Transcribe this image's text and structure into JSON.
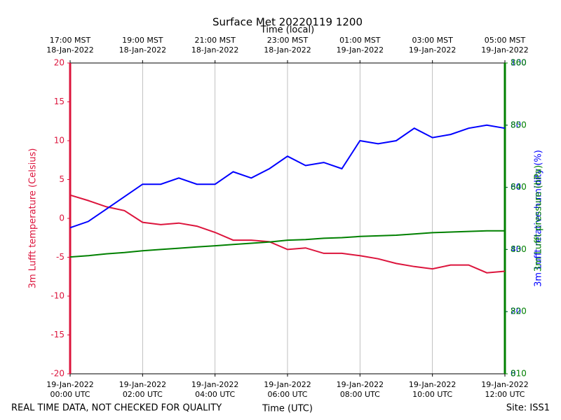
{
  "chart_data": {
    "type": "line",
    "title": "Surface Met 20220119 1200",
    "x_label": "Time (UTC)",
    "x2_label": "Time (local)",
    "y_label": "3m Lufft temperature (Celsius)",
    "y2_label": "3m Lufft relative humidity (%)",
    "y3_label": "3m Lufft pressure (hPa)",
    "footer_left": "REAL TIME DATA, NOT CHECKED FOR QUALITY",
    "footer_right": "Site: ISS1",
    "xlim": [
      0,
      12
    ],
    "xticks": [
      {
        "value": 0,
        "label": "19-Jan-2022\n00:00 UTC"
      },
      {
        "value": 2,
        "label": "19-Jan-2022\n02:00 UTC"
      },
      {
        "value": 4,
        "label": "19-Jan-2022\n04:00 UTC"
      },
      {
        "value": 6,
        "label": "19-Jan-2022\n06:00 UTC"
      },
      {
        "value": 8,
        "label": "19-Jan-2022\n08:00 UTC"
      },
      {
        "value": 10,
        "label": "19-Jan-2022\n10:00 UTC"
      },
      {
        "value": 12,
        "label": "19-Jan-2022\n12:00 UTC"
      }
    ],
    "x2ticks": [
      {
        "value": 0,
        "label": "17:00 MST\n18-Jan-2022"
      },
      {
        "value": 2,
        "label": "19:00 MST\n18-Jan-2022"
      },
      {
        "value": 4,
        "label": "21:00 MST\n18-Jan-2022"
      },
      {
        "value": 6,
        "label": "23:00 MST\n18-Jan-2022"
      },
      {
        "value": 8,
        "label": "01:00 MST\n19-Jan-2022"
      },
      {
        "value": 10,
        "label": "03:00 MST\n19-Jan-2022"
      },
      {
        "value": 12,
        "label": "05:00 MST\n19-Jan-2022"
      }
    ],
    "ylim": [
      -20,
      20
    ],
    "yticks": [
      -20,
      -15,
      -10,
      -5,
      0,
      5,
      10,
      15,
      20
    ],
    "y2lim": [
      0,
      100
    ],
    "y2ticks": [
      0,
      20,
      40,
      60,
      80,
      100
    ],
    "y3lim": [
      810,
      860
    ],
    "y3ticks": [
      810,
      820,
      830,
      840,
      850,
      860
    ],
    "grid": true,
    "x": [
      0,
      0.5,
      1,
      1.5,
      2,
      2.5,
      3,
      3.5,
      4,
      4.5,
      5,
      5.5,
      6,
      6.5,
      7,
      7.5,
      8,
      8.5,
      9,
      9.5,
      10,
      10.5,
      11,
      11.5,
      12
    ],
    "series": [
      {
        "name": "3m Lufft temperature (Celsius)",
        "color": "#dc143c",
        "axis": "y",
        "values": [
          3.0,
          2.3,
          1.5,
          1.0,
          -0.5,
          -0.8,
          -0.6,
          -1.0,
          -1.8,
          -2.8,
          -2.8,
          -3.0,
          -4.0,
          -3.8,
          -4.5,
          -4.5,
          -4.8,
          -5.2,
          -5.8,
          -6.2,
          -6.5,
          -6.0,
          -6.0,
          -7.0,
          -6.8
        ]
      },
      {
        "name": "3m Lufft relative humidity (%)",
        "color": "#0000ff",
        "axis": "y2",
        "values": [
          47,
          49,
          53,
          57,
          61,
          61,
          63,
          61,
          61,
          65,
          63,
          66,
          70,
          67,
          68,
          66,
          75,
          74,
          75,
          79,
          76,
          77,
          79,
          80,
          79
        ]
      },
      {
        "name": "3m Lufft pressure (hPa)",
        "color": "#008000",
        "axis": "y3",
        "values": [
          828.8,
          829.0,
          829.3,
          829.5,
          829.8,
          830.0,
          830.2,
          830.4,
          830.6,
          830.8,
          831.0,
          831.2,
          831.5,
          831.6,
          831.8,
          831.9,
          832.1,
          832.2,
          832.3,
          832.5,
          832.7,
          832.8,
          832.9,
          833.0,
          833.0
        ]
      }
    ]
  }
}
